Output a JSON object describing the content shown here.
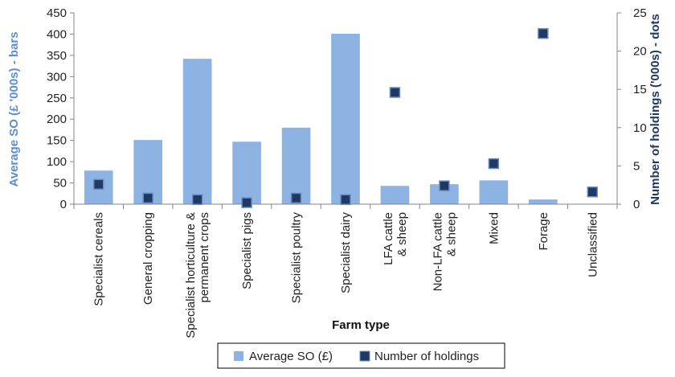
{
  "chart_data": {
    "type": "bar",
    "xlabel": "Farm type",
    "categories": [
      [
        "Specialist cereals"
      ],
      [
        "General cropping"
      ],
      [
        "Specialist horticulture &",
        "permanent crops"
      ],
      [
        "Specialist pigs"
      ],
      [
        "Specialist poultry"
      ],
      [
        "Specialist dairy"
      ],
      [
        "LFA cattle",
        "& sheep"
      ],
      [
        "Non-LFA cattle",
        "& sheep"
      ],
      [
        "Mixed"
      ],
      [
        "Forage"
      ],
      [
        "Unclassified"
      ]
    ],
    "y_left": {
      "label": "Average SO  (£ '000s) - bars",
      "range": [
        0,
        450
      ],
      "ticks": [
        0,
        50,
        100,
        150,
        200,
        250,
        300,
        350,
        400,
        450
      ]
    },
    "y_right": {
      "label": "Number of holdings ('000s) - dots",
      "range": [
        0,
        25
      ],
      "ticks": [
        0,
        5,
        10,
        15,
        20,
        25
      ]
    },
    "series": [
      {
        "name": "Average SO (£)",
        "kind": "bar",
        "axis": "left",
        "color": "#8DB3E2",
        "values": [
          79,
          151,
          342,
          147,
          180,
          401,
          43,
          47,
          56,
          11,
          0
        ]
      },
      {
        "name": "Number of holdings",
        "kind": "marker",
        "axis": "right",
        "color": "#1F3864",
        "values": [
          2.6,
          0.8,
          0.6,
          0.2,
          0.8,
          0.6,
          14.6,
          2.4,
          5.3,
          22.3,
          1.6
        ]
      }
    ],
    "grid": false,
    "legend": "bottom-center",
    "left_axis_title_color": "#5B8ED6",
    "right_axis_title_color": "#1F3864"
  }
}
